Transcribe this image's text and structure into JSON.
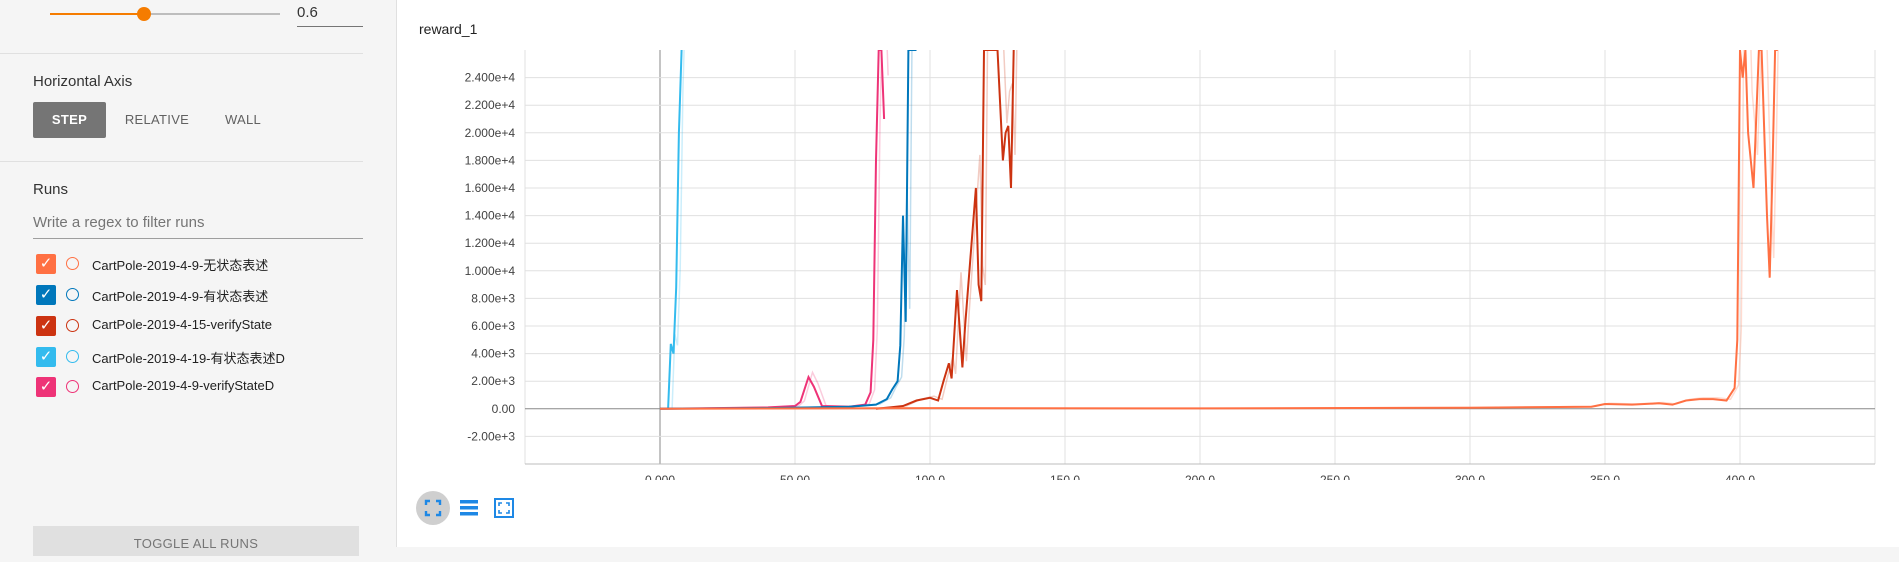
{
  "smoothing": {
    "value": "0.6",
    "fraction": 0.6
  },
  "horizontal_axis": {
    "title": "Horizontal Axis",
    "options": [
      "STEP",
      "RELATIVE",
      "WALL"
    ],
    "selected": "STEP"
  },
  "runs": {
    "title": "Runs",
    "filter_placeholder": "Write a regex to filter runs",
    "items": [
      {
        "label": "CartPole-2019-4-9-无状态表述",
        "color": "#ff7043",
        "checked": true
      },
      {
        "label": "CartPole-2019-4-9-有状态表述",
        "color": "#0077bb",
        "checked": true
      },
      {
        "label": "CartPole-2019-4-15-verifyState",
        "color": "#cc3311",
        "checked": true
      },
      {
        "label": "CartPole-2019-4-19-有状态表述D",
        "color": "#33bbee",
        "checked": true
      },
      {
        "label": "CartPole-2019-4-9-verifyStateD",
        "color": "#ee3377",
        "checked": true
      }
    ],
    "toggle_label": "TOGGLE ALL RUNS"
  },
  "chart": {
    "title": "reward_1"
  },
  "chart_data": {
    "type": "line",
    "title": "reward_1",
    "xlabel": "",
    "ylabel": "",
    "xlim": [
      -50,
      450
    ],
    "ylim": [
      -4000,
      26000
    ],
    "x_ticks": [
      "0.000",
      "50.00",
      "100.0",
      "150.0",
      "200.0",
      "250.0",
      "300.0",
      "350.0",
      "400.0"
    ],
    "x_tick_values": [
      0,
      50,
      100,
      150,
      200,
      250,
      300,
      350,
      400
    ],
    "y_ticks": [
      "-2.00e+3",
      "0.00",
      "2.00e+3",
      "4.00e+3",
      "6.00e+3",
      "8.00e+3",
      "1.000e+4",
      "1.200e+4",
      "1.400e+4",
      "1.600e+4",
      "1.800e+4",
      "2.000e+4",
      "2.200e+4",
      "2.400e+4"
    ],
    "y_tick_values": [
      -2000,
      0,
      2000,
      4000,
      6000,
      8000,
      10000,
      12000,
      14000,
      16000,
      18000,
      20000,
      22000,
      24000
    ],
    "grid": true,
    "series": [
      {
        "name": "CartPole-2019-4-19-有状态表述D",
        "color": "#33bbee",
        "x": [
          3,
          4,
          5,
          6,
          7,
          8
        ],
        "y": [
          0,
          4700,
          4000,
          8800,
          20000,
          26000
        ]
      },
      {
        "name": "CartPole-2019-4-9-verifyStateD",
        "color": "#ee3377",
        "x": [
          0,
          20,
          40,
          50,
          52,
          55,
          57,
          60,
          70,
          76,
          78,
          79,
          80,
          81,
          82,
          83
        ],
        "y": [
          0,
          50,
          100,
          200,
          500,
          2300,
          1600,
          200,
          150,
          300,
          1200,
          5000,
          18000,
          26000,
          26000,
          21000
        ]
      },
      {
        "name": "CartPole-2019-4-9-有状态表述",
        "color": "#0077bb",
        "x": [
          0,
          40,
          70,
          80,
          84,
          86,
          88,
          89,
          90,
          91,
          92,
          93,
          94,
          95
        ],
        "y": [
          0,
          50,
          150,
          300,
          700,
          1400,
          2000,
          4600,
          14000,
          6300,
          26000,
          26000,
          26000,
          26000
        ]
      },
      {
        "name": "CartPole-2019-4-15-verifyState",
        "color": "#cc3311",
        "x": [
          80,
          90,
          95,
          100,
          103,
          105,
          107,
          108,
          110,
          112,
          113,
          115,
          117,
          118,
          119,
          120,
          121,
          122,
          125,
          127,
          128,
          129,
          130,
          131
        ],
        "y": [
          0,
          200,
          600,
          800,
          600,
          2000,
          3300,
          2200,
          8600,
          3000,
          6000,
          11000,
          16000,
          9000,
          7800,
          26000,
          26000,
          26000,
          26000,
          18000,
          20000,
          20500,
          16000,
          26000
        ]
      },
      {
        "name": "CartPole-2019-4-9-无状态表述",
        "color": "#ff7043",
        "x": [
          0,
          100,
          200,
          300,
          345,
          350,
          360,
          370,
          375,
          380,
          385,
          390,
          395,
          398,
          399,
          400,
          401,
          402,
          403,
          405,
          407,
          408,
          410,
          411,
          412,
          413,
          414
        ],
        "y": [
          0,
          50,
          30,
          80,
          150,
          350,
          300,
          400,
          300,
          600,
          700,
          700,
          600,
          1500,
          5000,
          26000,
          24000,
          26000,
          20000,
          16000,
          26000,
          26000,
          14000,
          9500,
          17000,
          26000,
          26000
        ]
      }
    ]
  }
}
